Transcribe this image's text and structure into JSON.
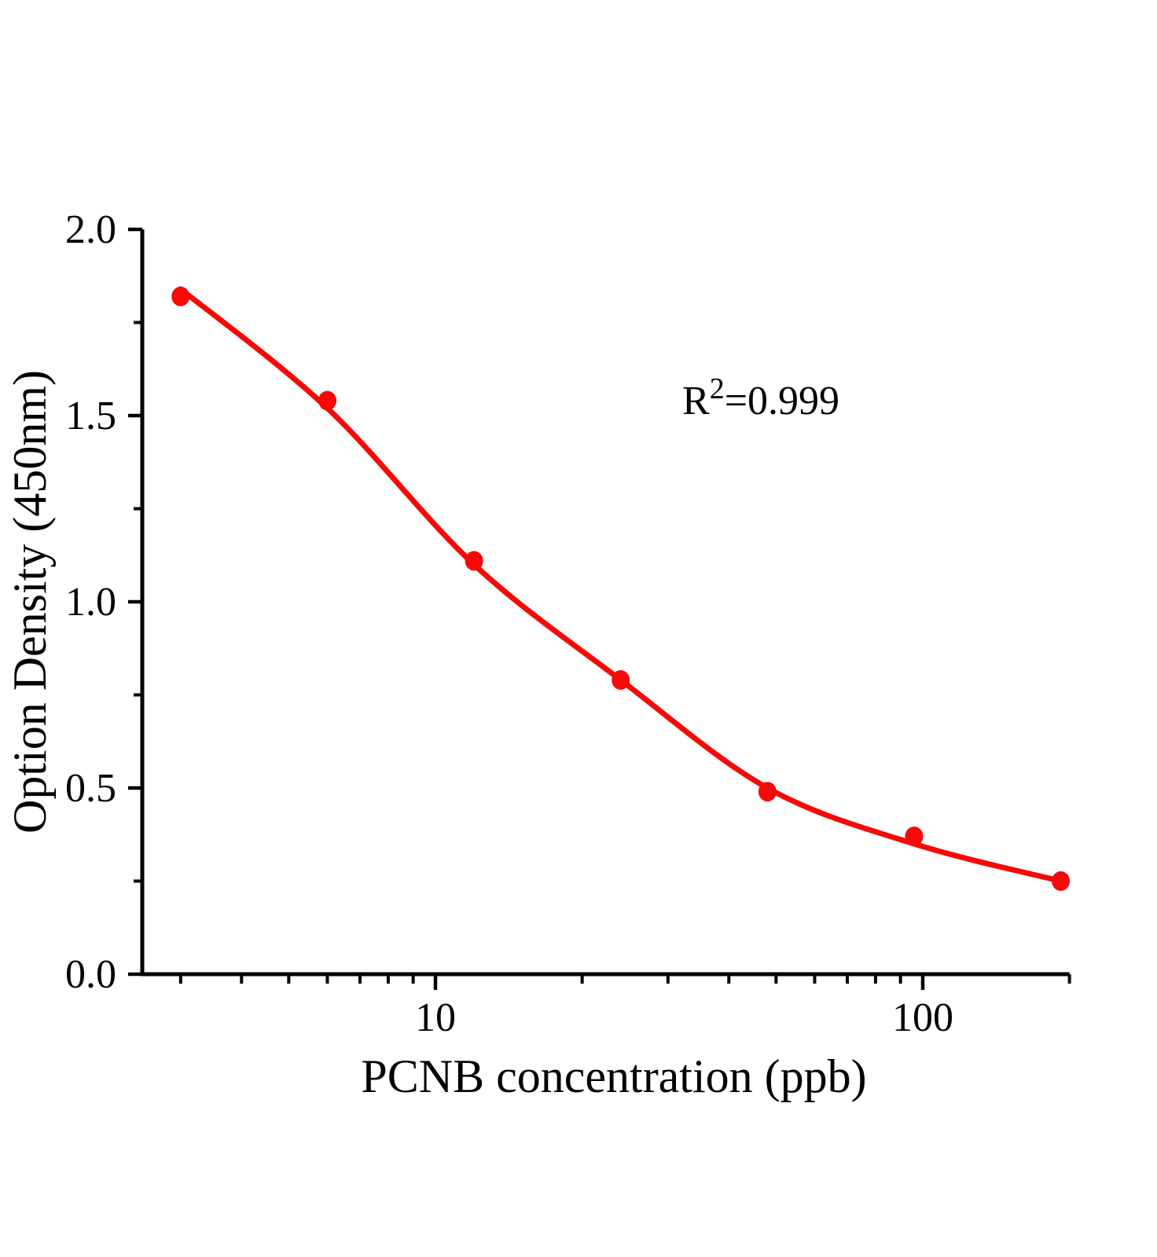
{
  "chart_data": {
    "type": "scatter",
    "title": "",
    "xlabel": "PCNB  concentration (ppb)",
    "ylabel": "Option Density (450nm)",
    "x_scale": "log",
    "y_scale": "linear",
    "xlim": [
      2.5,
      200
    ],
    "ylim": [
      0.0,
      2.0
    ],
    "grid": false,
    "legend": false,
    "x_major_ticks": [
      10,
      100
    ],
    "x_major_tick_labels": [
      "10",
      "100"
    ],
    "x_minor_ticks": [
      3,
      4,
      5,
      6,
      7,
      8,
      9,
      20,
      30,
      40,
      50,
      60,
      70,
      80,
      90,
      200
    ],
    "y_major_ticks": [
      0.0,
      0.5,
      1.0,
      1.5,
      2.0
    ],
    "y_major_tick_labels": [
      "0.0",
      "0.5",
      "1.0",
      "1.5",
      "2.0"
    ],
    "y_minor_ticks": [
      0.25,
      0.75,
      1.25,
      1.75
    ],
    "annotation": {
      "full_text": "R²=0.999",
      "base": "R",
      "superscript": "2",
      "rest": "=0.999"
    },
    "series": [
      {
        "name": "standards-scatter",
        "type": "scatter",
        "color": "#f60909",
        "x": [
          3,
          6,
          12,
          24,
          48,
          96,
          192
        ],
        "y": [
          1.82,
          1.54,
          1.11,
          0.79,
          0.49,
          0.37,
          0.25
        ]
      },
      {
        "name": "fit-curve",
        "type": "line",
        "color": "#f60909",
        "x": [
          3,
          6,
          12,
          24,
          48,
          96,
          192
        ],
        "y": [
          1.84,
          1.52,
          1.1,
          0.79,
          0.5,
          0.35,
          0.25
        ]
      }
    ]
  },
  "colors": {
    "curve": "#f60909",
    "axis": "#000000",
    "text": "#000000",
    "background": "#ffffff"
  }
}
